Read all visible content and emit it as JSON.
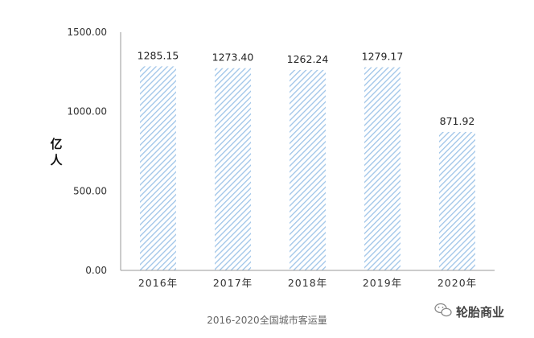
{
  "chart_data": {
    "type": "bar",
    "categories": [
      "2016年",
      "2017年",
      "2018年",
      "2019年",
      "2020年"
    ],
    "values": [
      1285.15,
      1273.4,
      1262.24,
      1279.17,
      871.92
    ],
    "value_labels": [
      "1285.15",
      "1273.40",
      "1262.24",
      "1279.17",
      "871.92"
    ],
    "ylabel": "亿人",
    "ylim": [
      0,
      1500
    ],
    "yticks": [
      0,
      500,
      1000,
      1500
    ],
    "ytick_labels": [
      "0.00",
      "500.00",
      "1000.00",
      "1500.00"
    ],
    "grid": false,
    "bar_color": "#9ec4e8",
    "caption": "2016-2020全国城市客运量"
  },
  "watermark": {
    "text": "轮胎商业",
    "icon": "wechat-icon"
  }
}
